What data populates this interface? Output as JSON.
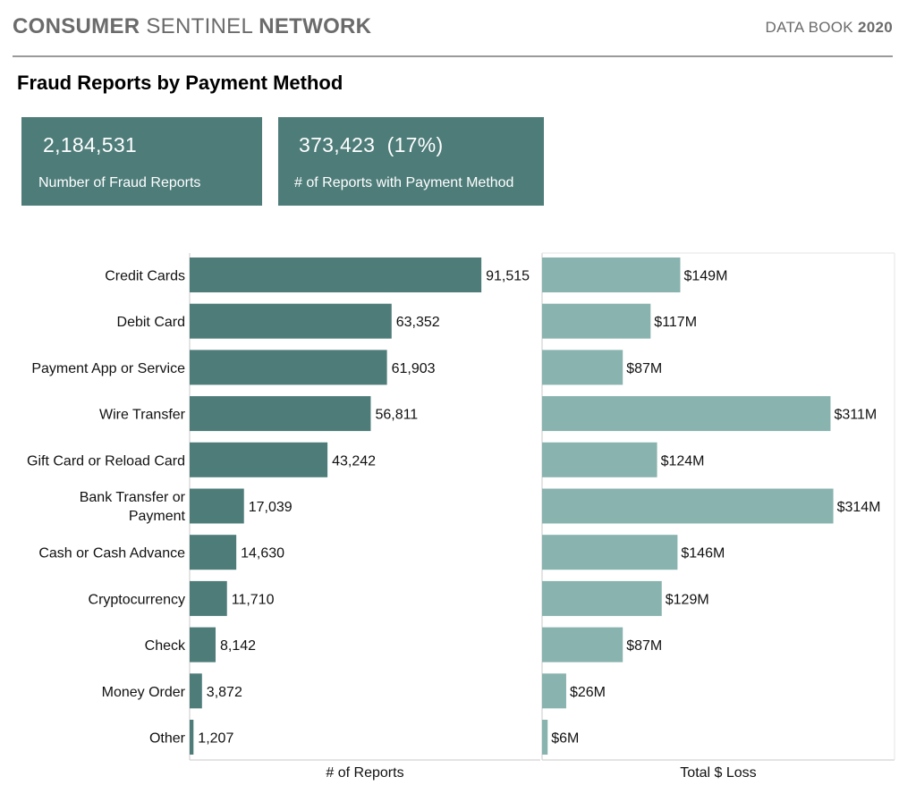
{
  "header": {
    "brand_bold_1": "CONSUMER",
    "brand_light": "SENTINEL",
    "brand_bold_2": "NETWORK",
    "databook_label": "DATA BOOK",
    "databook_year": "2020"
  },
  "page_title": "Fraud Reports by Payment Method",
  "kpis": [
    {
      "value": "2,184,531",
      "label": "Number of Fraud Reports"
    },
    {
      "value": "373,423  (17%)",
      "label": "# of Reports with Payment Method"
    }
  ],
  "colors": {
    "kpi_bg": "#4d7c79",
    "reports_bar": "#4d7c79",
    "loss_bar": "#88b3af",
    "axis": "#c8c8c8"
  },
  "chart_data": {
    "type": "bar",
    "orientation": "horizontal",
    "categories": [
      [
        "Credit Cards"
      ],
      [
        "Debit Card"
      ],
      [
        "Payment App or Service"
      ],
      [
        "Wire Transfer"
      ],
      [
        "Gift Card or Reload Card"
      ],
      [
        "Bank Transfer or",
        "Payment"
      ],
      [
        "Cash or Cash Advance"
      ],
      [
        "Cryptocurrency"
      ],
      [
        "Check"
      ],
      [
        "Money Order"
      ],
      [
        "Other"
      ]
    ],
    "series": [
      {
        "name": "# of Reports",
        "values": [
          91515,
          63352,
          61903,
          56811,
          43242,
          17039,
          14630,
          11710,
          8142,
          3872,
          1207
        ],
        "labels": [
          "91,515",
          "63,352",
          "61,903",
          "56,811",
          "43,242",
          "17,039",
          "14,630",
          "11,710",
          "8,142",
          "3,872",
          "1,207"
        ]
      },
      {
        "name": "Total $ Loss",
        "values": [
          149,
          117,
          87,
          311,
          124,
          314,
          146,
          129,
          87,
          26,
          6
        ],
        "unit": "$M",
        "labels": [
          "$149M",
          "$117M",
          "$87M",
          "$311M",
          "$124M",
          "$314M",
          "$146M",
          "$129M",
          "$87M",
          "$26M",
          "$6M"
        ]
      }
    ],
    "xlabels": [
      "# of Reports",
      "Total $ Loss"
    ],
    "grid": false,
    "legend": "none"
  }
}
